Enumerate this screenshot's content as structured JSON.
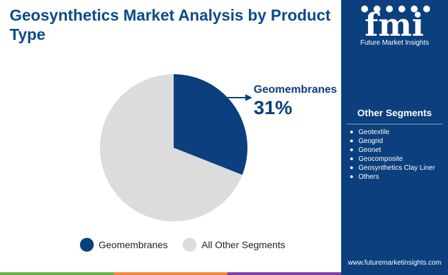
{
  "title": "Geosynthetics Market Analysis by Product Type",
  "chart_data": {
    "type": "pie",
    "slices": [
      {
        "name": "Geomembranes",
        "value": 31,
        "color": "#0b3f7d"
      },
      {
        "name": "All Other Segments",
        "value": 69,
        "color": "#dcdcdc"
      }
    ],
    "title": "Geosynthetics Market Analysis by Product Type",
    "legend_position": "bottom"
  },
  "callout": {
    "label": "Geomembranes",
    "value": "31%"
  },
  "legend": [
    {
      "label": "Geomembranes",
      "color": "#0b3f7d"
    },
    {
      "label": "All Other Segments",
      "color": "#dcdcdc"
    }
  ],
  "sidebar": {
    "logo_text": "fmi",
    "logo_subtitle": "Future Market Insights",
    "segments_title": "Other Segments",
    "segments": [
      "Geotextile",
      "Geogrid",
      "Geonet",
      "Geocomposite",
      "Geosynthetics Clay Liner",
      "Others"
    ],
    "url": "www.futuremarketinsights.com"
  },
  "colors": {
    "brand": "#0b3f7d",
    "title": "#0a4b8c",
    "bar_green": "#6ab04c",
    "bar_orange": "#f0883e",
    "bar_purple": "#7b3f9e"
  }
}
